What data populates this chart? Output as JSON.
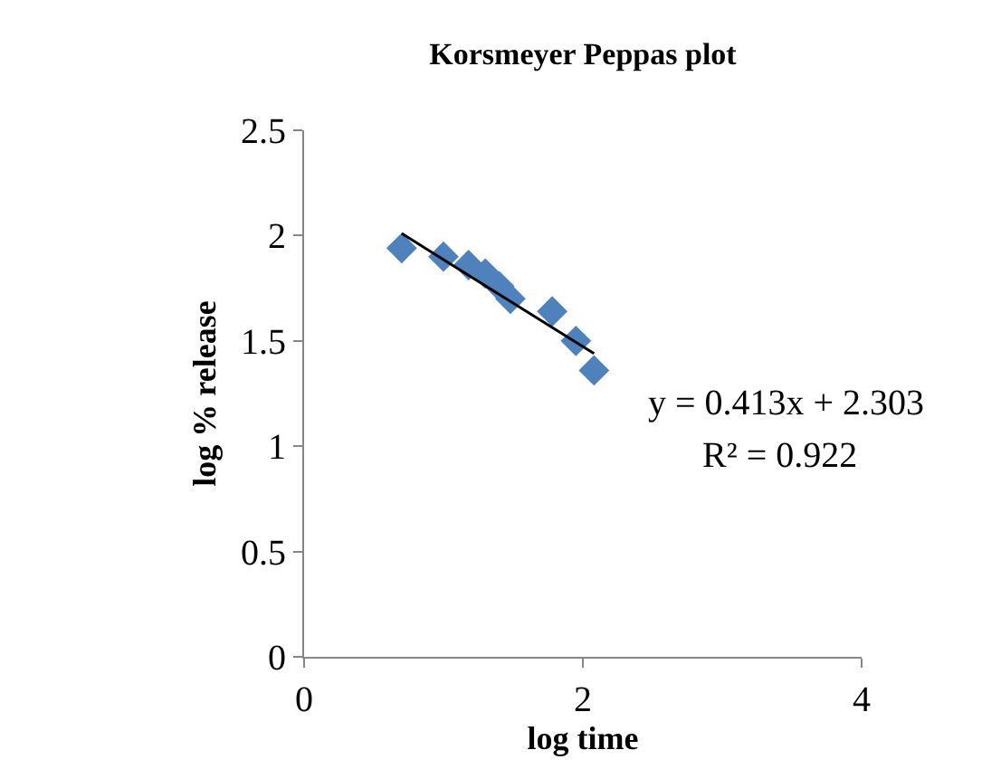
{
  "chart_data": {
    "type": "scatter",
    "title": "Korsmeyer Peppas plot",
    "xlabel": "log time",
    "ylabel": "log % release",
    "xlim": [
      0,
      4
    ],
    "xticks": [
      0,
      2,
      4
    ],
    "ylim": [
      0,
      2.5
    ],
    "yticks": [
      0,
      0.5,
      1,
      1.5,
      2,
      2.5
    ],
    "legend": false,
    "marker": "diamond",
    "series": [
      {
        "color": "#4f81bd",
        "x": [
          0.7,
          1.0,
          1.18,
          1.3,
          1.4,
          1.48,
          1.78,
          1.95,
          2.08
        ],
        "values": [
          1.94,
          1.9,
          1.86,
          1.82,
          1.76,
          1.7,
          1.64,
          1.5,
          1.36
        ]
      },
      {
        "type": "line",
        "marker": "none",
        "color": "#000000",
        "x": [
          0.7,
          2.08
        ],
        "values": [
          2.01,
          1.44
        ]
      }
    ],
    "annotations": [
      "y = 0.413x + 2.303",
      "R² = 0.922"
    ]
  }
}
